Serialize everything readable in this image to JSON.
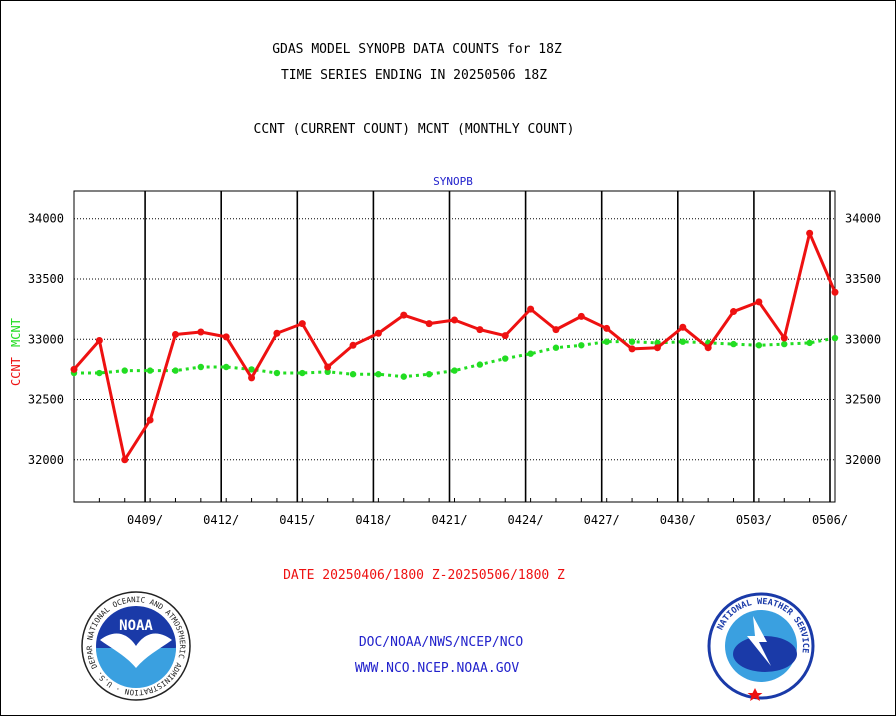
{
  "header": {
    "title_line1": "GDAS MODEL SYNOPB DATA COUNTS for 18Z",
    "title_line2": "TIME SERIES ENDING IN 20250506 18Z",
    "legend_line": "CCNT (CURRENT COUNT) MCNT (MONTHLY COUNT)"
  },
  "footer": {
    "date_range": "DATE 20250406/1800 Z-20250506/1800 Z",
    "org_line1": "DOC/NOAA/NWS/NCEP/NCO",
    "org_line2": "WWW.NCO.NCEP.NOAA.GOV",
    "noaa_logo_text": "NOAA",
    "noaa_ring_text": "NATIONAL OCEANIC AND ATMOSPHERIC ADMINISTRATION · U.S. DEPARTMENT OF COMMERCE",
    "nws_ring_text": "NATIONAL WEATHER SERVICE"
  },
  "colors": {
    "ccnt": "#ee1111",
    "mcnt": "#22dd22",
    "grid": "#000000",
    "text": "#000000",
    "blue": "#2222cc"
  },
  "chart_data": {
    "type": "line",
    "title": "SYNOPB",
    "ylabel_left_1": "CCNT",
    "ylabel_left_2": "MCNT",
    "ylim": [
      31650,
      34230
    ],
    "yticks": [
      32000,
      32500,
      33000,
      33500,
      34000
    ],
    "ytick_labels": [
      "32000",
      "32500",
      "33000",
      "33500",
      "34000"
    ],
    "x_tick_labels": [
      "0409/",
      "0412/",
      "0415/",
      "0418/",
      "0421/",
      "0424/",
      "0427/",
      "0430/",
      "0503/",
      "0506/"
    ],
    "grid": true,
    "series": [
      {
        "name": "CCNT",
        "values": [
          32750,
          32990,
          32000,
          32330,
          33040,
          33060,
          33020,
          32680,
          33050,
          33130,
          32770,
          32950,
          33050,
          33200,
          33130,
          33160,
          33080,
          33030,
          33250,
          33080,
          33190,
          33090,
          32920,
          32930,
          33100,
          32930,
          33230,
          33310,
          33010,
          33880,
          33390
        ]
      },
      {
        "name": "MCNT",
        "values": [
          32720,
          32720,
          32740,
          32740,
          32740,
          32770,
          32770,
          32750,
          32720,
          32720,
          32730,
          32710,
          32710,
          32690,
          32710,
          32740,
          32790,
          32840,
          32880,
          32930,
          32950,
          32980,
          32980,
          32970,
          32980,
          32970,
          32960,
          32950,
          32960,
          32970,
          33010
        ]
      }
    ]
  }
}
